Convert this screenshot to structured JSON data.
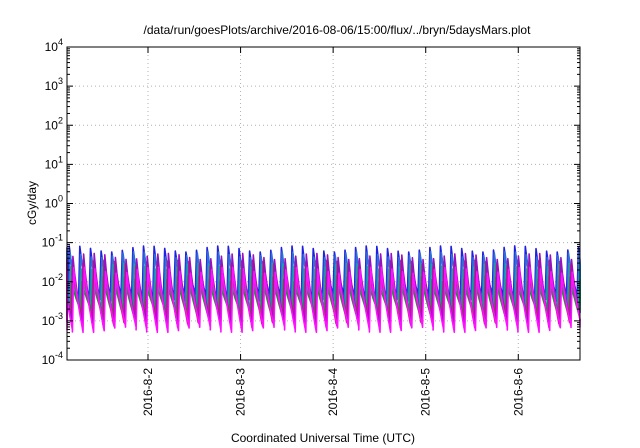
{
  "chart_data": {
    "type": "line",
    "title": "/data/run/goesPlots/archive/2016-08-06/15:00/flux/../bryn/5daysMars.plot",
    "xlabel": "Coordinated Universal Time (UTC)",
    "ylabel": "cGy/day",
    "yscale": "log",
    "ylim": [
      0.0001,
      10000
    ],
    "xlim": [
      "2016-08-01 03:00",
      "2016-08-06 16:00"
    ],
    "x_ticks": [
      "2016-8-2",
      "2016-8-3",
      "2016-8-4",
      "2016-8-5",
      "2016-8-6"
    ],
    "y_ticks": [
      {
        "value": 0.0001,
        "base": "10",
        "exp": "-4"
      },
      {
        "value": 0.001,
        "base": "10",
        "exp": "-3"
      },
      {
        "value": 0.01,
        "base": "10",
        "exp": "-2"
      },
      {
        "value": 0.1,
        "base": "10",
        "exp": "-1"
      },
      {
        "value": 1,
        "base": "10",
        "exp": "0"
      },
      {
        "value": 10,
        "base": "10",
        "exp": "1"
      },
      {
        "value": 100,
        "base": "10",
        "exp": "2"
      },
      {
        "value": 1000,
        "base": "10",
        "exp": "3"
      },
      {
        "value": 10000,
        "base": "10",
        "exp": "4"
      }
    ],
    "grid": true,
    "pattern_period_hours": 2.75,
    "series": [
      {
        "color": "#2020e0",
        "peak": 0.07,
        "trough": 0.004
      },
      {
        "color": "#2f6fd8",
        "peak": 0.05,
        "trough": 0.003
      },
      {
        "color": "#10a8a8",
        "peak": 0.025,
        "trough": 0.0018
      },
      {
        "color": "#1f8f3f",
        "peak": 0.012,
        "trough": 0.0015
      },
      {
        "color": "#d02060",
        "peak": 0.03,
        "trough": 0.001
      },
      {
        "color": "#9a10c0",
        "peak": 0.045,
        "trough": 0.0008
      },
      {
        "color": "#ff10ff",
        "peak": 0.02,
        "trough": 0.0006
      }
    ]
  }
}
